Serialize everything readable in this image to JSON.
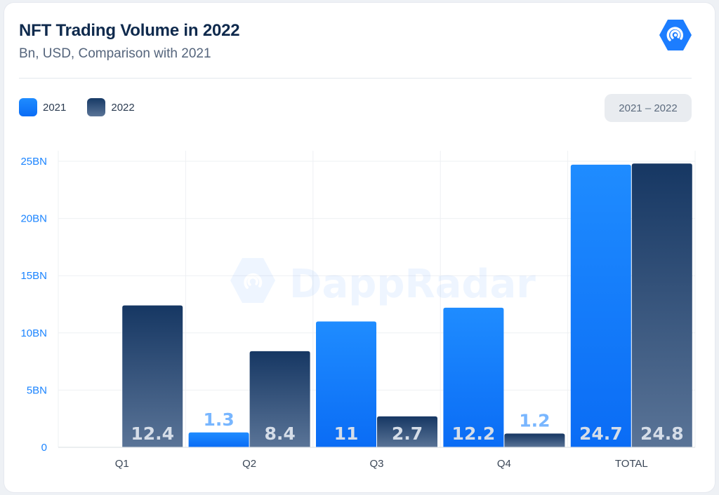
{
  "header": {
    "title": "NFT Trading Volume in 2022",
    "subtitle": "Bn, USD, Comparison with 2021",
    "logo_icon": "dappradar-logo-icon"
  },
  "legend": [
    {
      "label": "2021",
      "color": "#0a7cff"
    },
    {
      "label": "2022",
      "color": "#1f3f6b"
    }
  ],
  "range_button": {
    "label": "2021 – 2022"
  },
  "watermark": "DappRadar",
  "colors": {
    "axis_text": "#1b84ff",
    "s2021_top": "#1f8cff",
    "s2021_bottom": "#0a6cf5",
    "s2022_top": "#163763",
    "s2022_bottom": "#5a7497",
    "label_on_bar": "#d5dde8",
    "label_above_bar": "#78b6ff"
  },
  "chart_data": {
    "type": "bar",
    "categories": [
      "Q1",
      "Q2",
      "Q3",
      "Q4",
      "TOTAL"
    ],
    "series": [
      {
        "name": "2021",
        "values": [
          null,
          1.3,
          11,
          12.2,
          24.7
        ],
        "labels": [
          "",
          "1.3",
          "11",
          "12.2",
          "24.7"
        ]
      },
      {
        "name": "2022",
        "values": [
          12.4,
          8.4,
          2.7,
          1.2,
          24.8
        ],
        "labels": [
          "12.4",
          "8.4",
          "2.7",
          "1.2",
          "24.8"
        ]
      }
    ],
    "yticks": [
      {
        "value": 0,
        "label": "0"
      },
      {
        "value": 5,
        "label": "5BN"
      },
      {
        "value": 10,
        "label": "10BN"
      },
      {
        "value": 15,
        "label": "15BN"
      },
      {
        "value": 20,
        "label": "20BN"
      },
      {
        "value": 25,
        "label": "25BN"
      }
    ],
    "ylim": [
      0,
      25
    ],
    "grid": true,
    "legend_position": "top-left"
  }
}
